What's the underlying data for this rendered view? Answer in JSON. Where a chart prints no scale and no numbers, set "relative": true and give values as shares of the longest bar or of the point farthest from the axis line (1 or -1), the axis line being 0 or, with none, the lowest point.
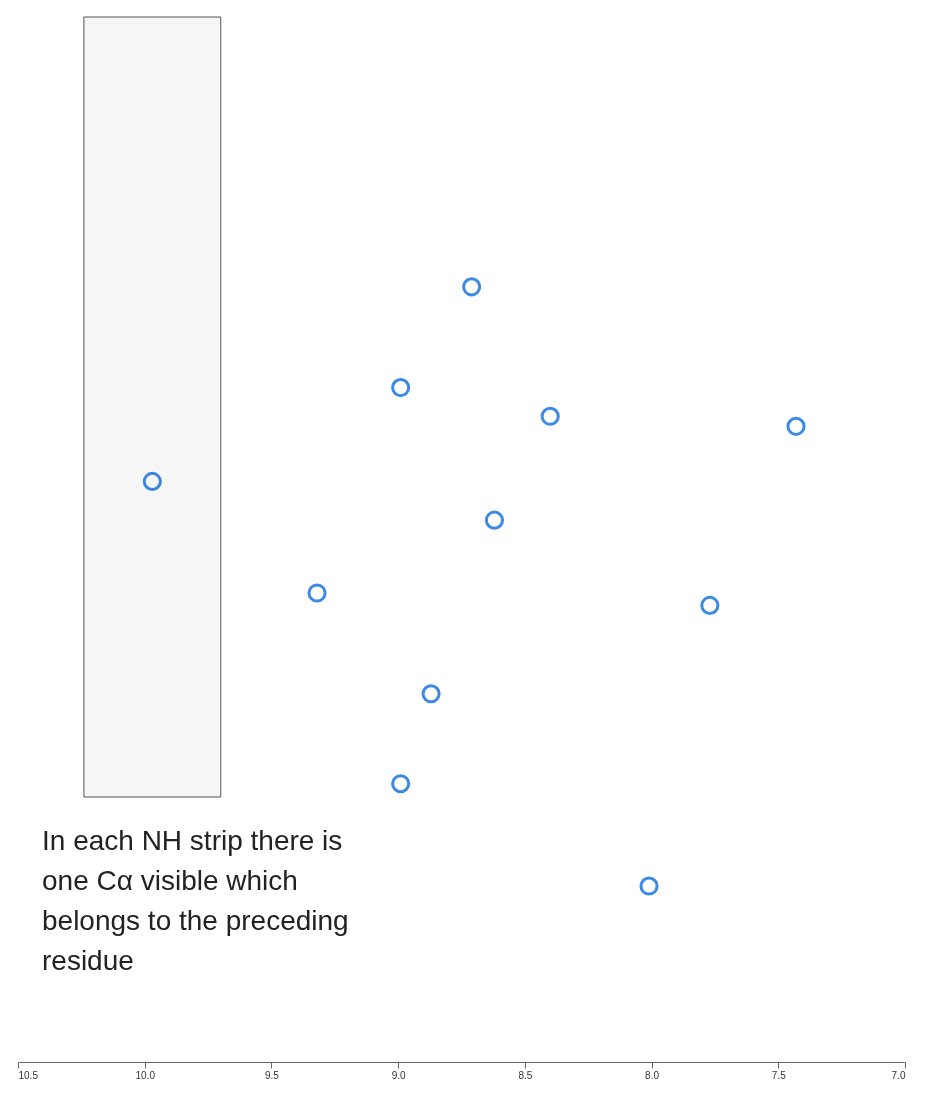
{
  "chart_data": {
    "type": "scatter",
    "relative": true,
    "x": [
      8.71,
      8.99,
      8.4,
      7.43,
      9.97,
      8.62,
      9.32,
      7.77,
      8.87,
      8.99,
      8.01
    ],
    "series": [
      {
        "color": "#3d8ae6",
        "values": [
          1.0,
          0.87,
          0.833,
          0.82,
          0.749,
          0.699,
          0.605,
          0.589,
          0.475,
          0.359,
          0.227
        ]
      }
    ],
    "xlim": [
      10.5,
      7.0
    ],
    "xticks": [
      10.5,
      {
        "value": 10,
        "label": "10.0"
      },
      9.5,
      {
        "value": 9,
        "label": "9.0"
      },
      8.5,
      {
        "value": 8,
        "label": "8.0"
      },
      7.5,
      {
        "value": 7,
        "label": "7.0"
      }
    ],
    "marker": "circle",
    "grid": false,
    "bands": [
      {
        "axis": "x",
        "from": 10.24,
        "to": 9.7,
        "color": "#555555"
      }
    ],
    "annotations": [
      "In each NH strip there is one Cα visible which belongs to the preceding residue"
    ]
  }
}
